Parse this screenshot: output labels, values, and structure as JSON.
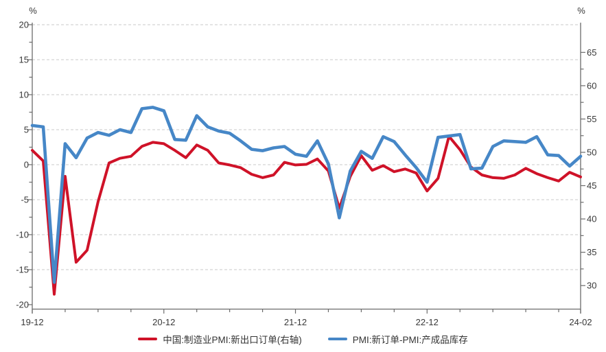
{
  "chart_data": {
    "type": "line",
    "title": "",
    "x_months": [
      "19-12",
      "20-01",
      "20-02",
      "20-03",
      "20-04",
      "20-05",
      "20-06",
      "20-07",
      "20-08",
      "20-09",
      "20-10",
      "20-11",
      "20-12",
      "21-01",
      "21-02",
      "21-03",
      "21-04",
      "21-05",
      "21-06",
      "21-07",
      "21-08",
      "21-09",
      "21-10",
      "21-11",
      "21-12",
      "22-01",
      "22-02",
      "22-03",
      "22-04",
      "22-05",
      "22-06",
      "22-07",
      "22-08",
      "22-09",
      "22-10",
      "22-11",
      "22-12",
      "23-01",
      "23-02",
      "23-03",
      "23-04",
      "23-05",
      "23-06",
      "23-07",
      "23-08",
      "23-09",
      "23-10",
      "23-11",
      "23-12",
      "24-01",
      "24-02"
    ],
    "x_ticks": [
      {
        "index": 0,
        "label": "19-12"
      },
      {
        "index": 12,
        "label": "20-12"
      },
      {
        "index": 24,
        "label": "21-12"
      },
      {
        "index": 36,
        "label": "22-12"
      },
      {
        "index": 50,
        "label": "24-02"
      }
    ],
    "x_minor_tick_every_months": 3,
    "axes": {
      "left": {
        "unit": "%",
        "min": -20,
        "max": 20,
        "tick_step": 5,
        "minor_tick_step": 2.5,
        "tick_labels": [
          "20",
          "15",
          "10",
          "5",
          "0",
          "-5",
          "-10",
          "-15",
          "-20"
        ]
      },
      "right": {
        "unit": "%",
        "min": 30,
        "max": 65,
        "tick_step": 5,
        "minor_tick_step": 2.5,
        "tick_labels": [
          "65",
          "60",
          "55",
          "50",
          "45",
          "40",
          "35",
          "30"
        ]
      }
    },
    "grid": "horizontal dashed gridlines at left-axis majors 20 to -15",
    "legend_position": "bottom-center",
    "series": [
      {
        "name": "中国:制造业PMI:新出口订单(右轴)",
        "axis": "right",
        "color": "#cf1228",
        "values": [
          50.3,
          48.7,
          28.7,
          46.4,
          33.5,
          35.3,
          42.6,
          48.4,
          49.1,
          49.4,
          50.9,
          51.5,
          51.3,
          50.3,
          49.2,
          51.1,
          50.3,
          48.4,
          48.1,
          47.7,
          46.7,
          46.2,
          46.6,
          48.5,
          48.1,
          48.2,
          49.0,
          47.2,
          41.6,
          46.4,
          49.5,
          47.3,
          48.0,
          47.1,
          47.5,
          46.9,
          44.2,
          46.1,
          52.4,
          50.4,
          47.8,
          46.6,
          46.2,
          46.1,
          46.6,
          47.6,
          46.8,
          46.2,
          45.7,
          47.0,
          46.3
        ]
      },
      {
        "name": "PMI:新订单-PMI:产成品库存",
        "axis": "left",
        "color": "#4687c7",
        "values": [
          5.6,
          5.4,
          -16.8,
          3.0,
          1.0,
          3.8,
          4.6,
          4.2,
          5.0,
          4.6,
          8.0,
          8.2,
          7.7,
          3.6,
          3.5,
          7.0,
          5.4,
          4.8,
          4.5,
          3.4,
          2.2,
          2.0,
          2.4,
          2.6,
          1.5,
          1.2,
          3.4,
          0.1,
          -7.6,
          -0.9,
          1.9,
          0.9,
          4.0,
          3.3,
          1.4,
          -0.4,
          -2.5,
          3.9,
          4.1,
          4.3,
          -0.6,
          -0.5,
          2.6,
          3.4,
          3.3,
          3.2,
          4.0,
          1.4,
          1.3,
          -0.2,
          1.2
        ]
      }
    ]
  },
  "colors": {
    "background": "#ffffff",
    "grid": "#c9c9c9",
    "axis": "#6b6b6b",
    "tick_label": "#383838",
    "legend_text": "#333333"
  }
}
